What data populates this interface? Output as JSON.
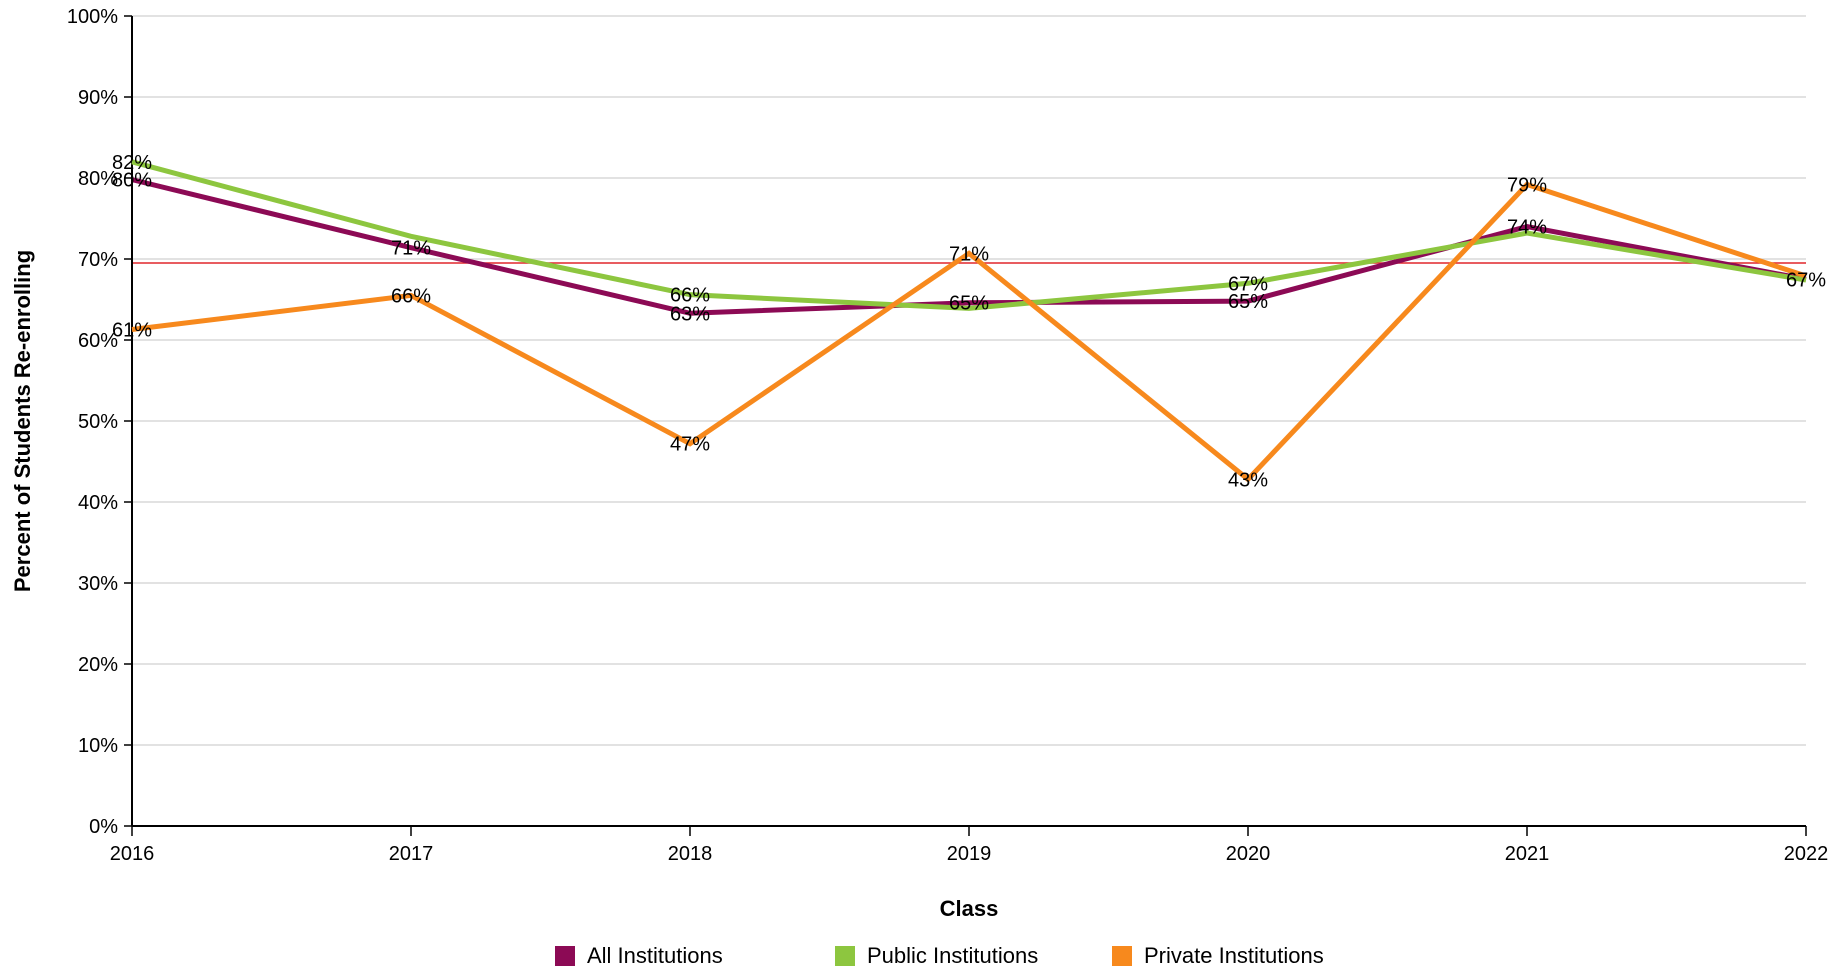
{
  "chart_data": {
    "type": "line",
    "title": "",
    "xlabel": "Class",
    "ylabel": "Percent of Students Re-enrolling",
    "categories": [
      "2016",
      "2017",
      "2018",
      "2019",
      "2020",
      "2021",
      "2022"
    ],
    "ylim": [
      0,
      100
    ],
    "yticks": [
      "0%",
      "10%",
      "20%",
      "30%",
      "40%",
      "50%",
      "60%",
      "70%",
      "80%",
      "90%",
      "100%"
    ],
    "grid": true,
    "legend_position": "bottom",
    "reference_line": {
      "value": 69.5,
      "color": "#e0262b"
    },
    "series": [
      {
        "name": "All Institutions",
        "color": "#8c0a55",
        "values": [
          79.8,
          71.4,
          63.3,
          64.6,
          64.8,
          74.0,
          67.5
        ],
        "labels": [
          "80%",
          "71%",
          "63%",
          "65%",
          "65%",
          "74%",
          "67%"
        ]
      },
      {
        "name": "Public Institutions",
        "color": "#8dc63f",
        "values": [
          82.0,
          72.8,
          65.6,
          63.9,
          67.0,
          73.2,
          67.4
        ],
        "labels": [
          "82%",
          "",
          "66%",
          "",
          "67%",
          "",
          ""
        ]
      },
      {
        "name": "Private Institutions",
        "color": "#f7891d",
        "values": [
          61.3,
          65.5,
          47.2,
          70.7,
          42.8,
          79.2,
          67.9
        ],
        "labels": [
          "61%",
          "66%",
          "47%",
          "71%",
          "43%",
          "79%",
          ""
        ]
      }
    ]
  }
}
